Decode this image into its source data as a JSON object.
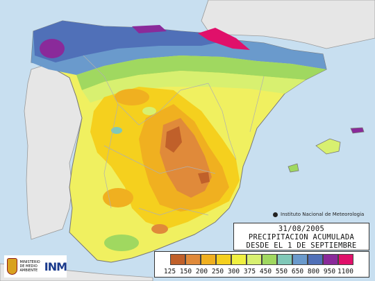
{
  "title": {
    "date": "31/08/2005",
    "line1": "PRECIPITACION ACUMULADA",
    "line2": "DESDE EL 1 DE SEPTIEMBRE"
  },
  "credit": "Instituto Nacional de Meteorologia",
  "ministry": "MINISTERIO DE MEDIO AMBIENTE",
  "agency_logo": "INM",
  "legend": {
    "unit": "",
    "thresholds": [
      "125",
      "150",
      "200",
      "250",
      "300",
      "375",
      "450",
      "550",
      "650",
      "800",
      "950",
      "1100"
    ],
    "colors": [
      "#c0602a",
      "#e08a3a",
      "#f0b020",
      "#f5d01e",
      "#f0f040",
      "#d8f070",
      "#a0d860",
      "#80c8b8",
      "#6a9acc",
      "#5070b8",
      "#8a2a9a",
      "#e0106a"
    ]
  },
  "map_colors": {
    "sea": "#c8dff0",
    "land_outside": "#e6e6e6",
    "borders": "#999999"
  }
}
